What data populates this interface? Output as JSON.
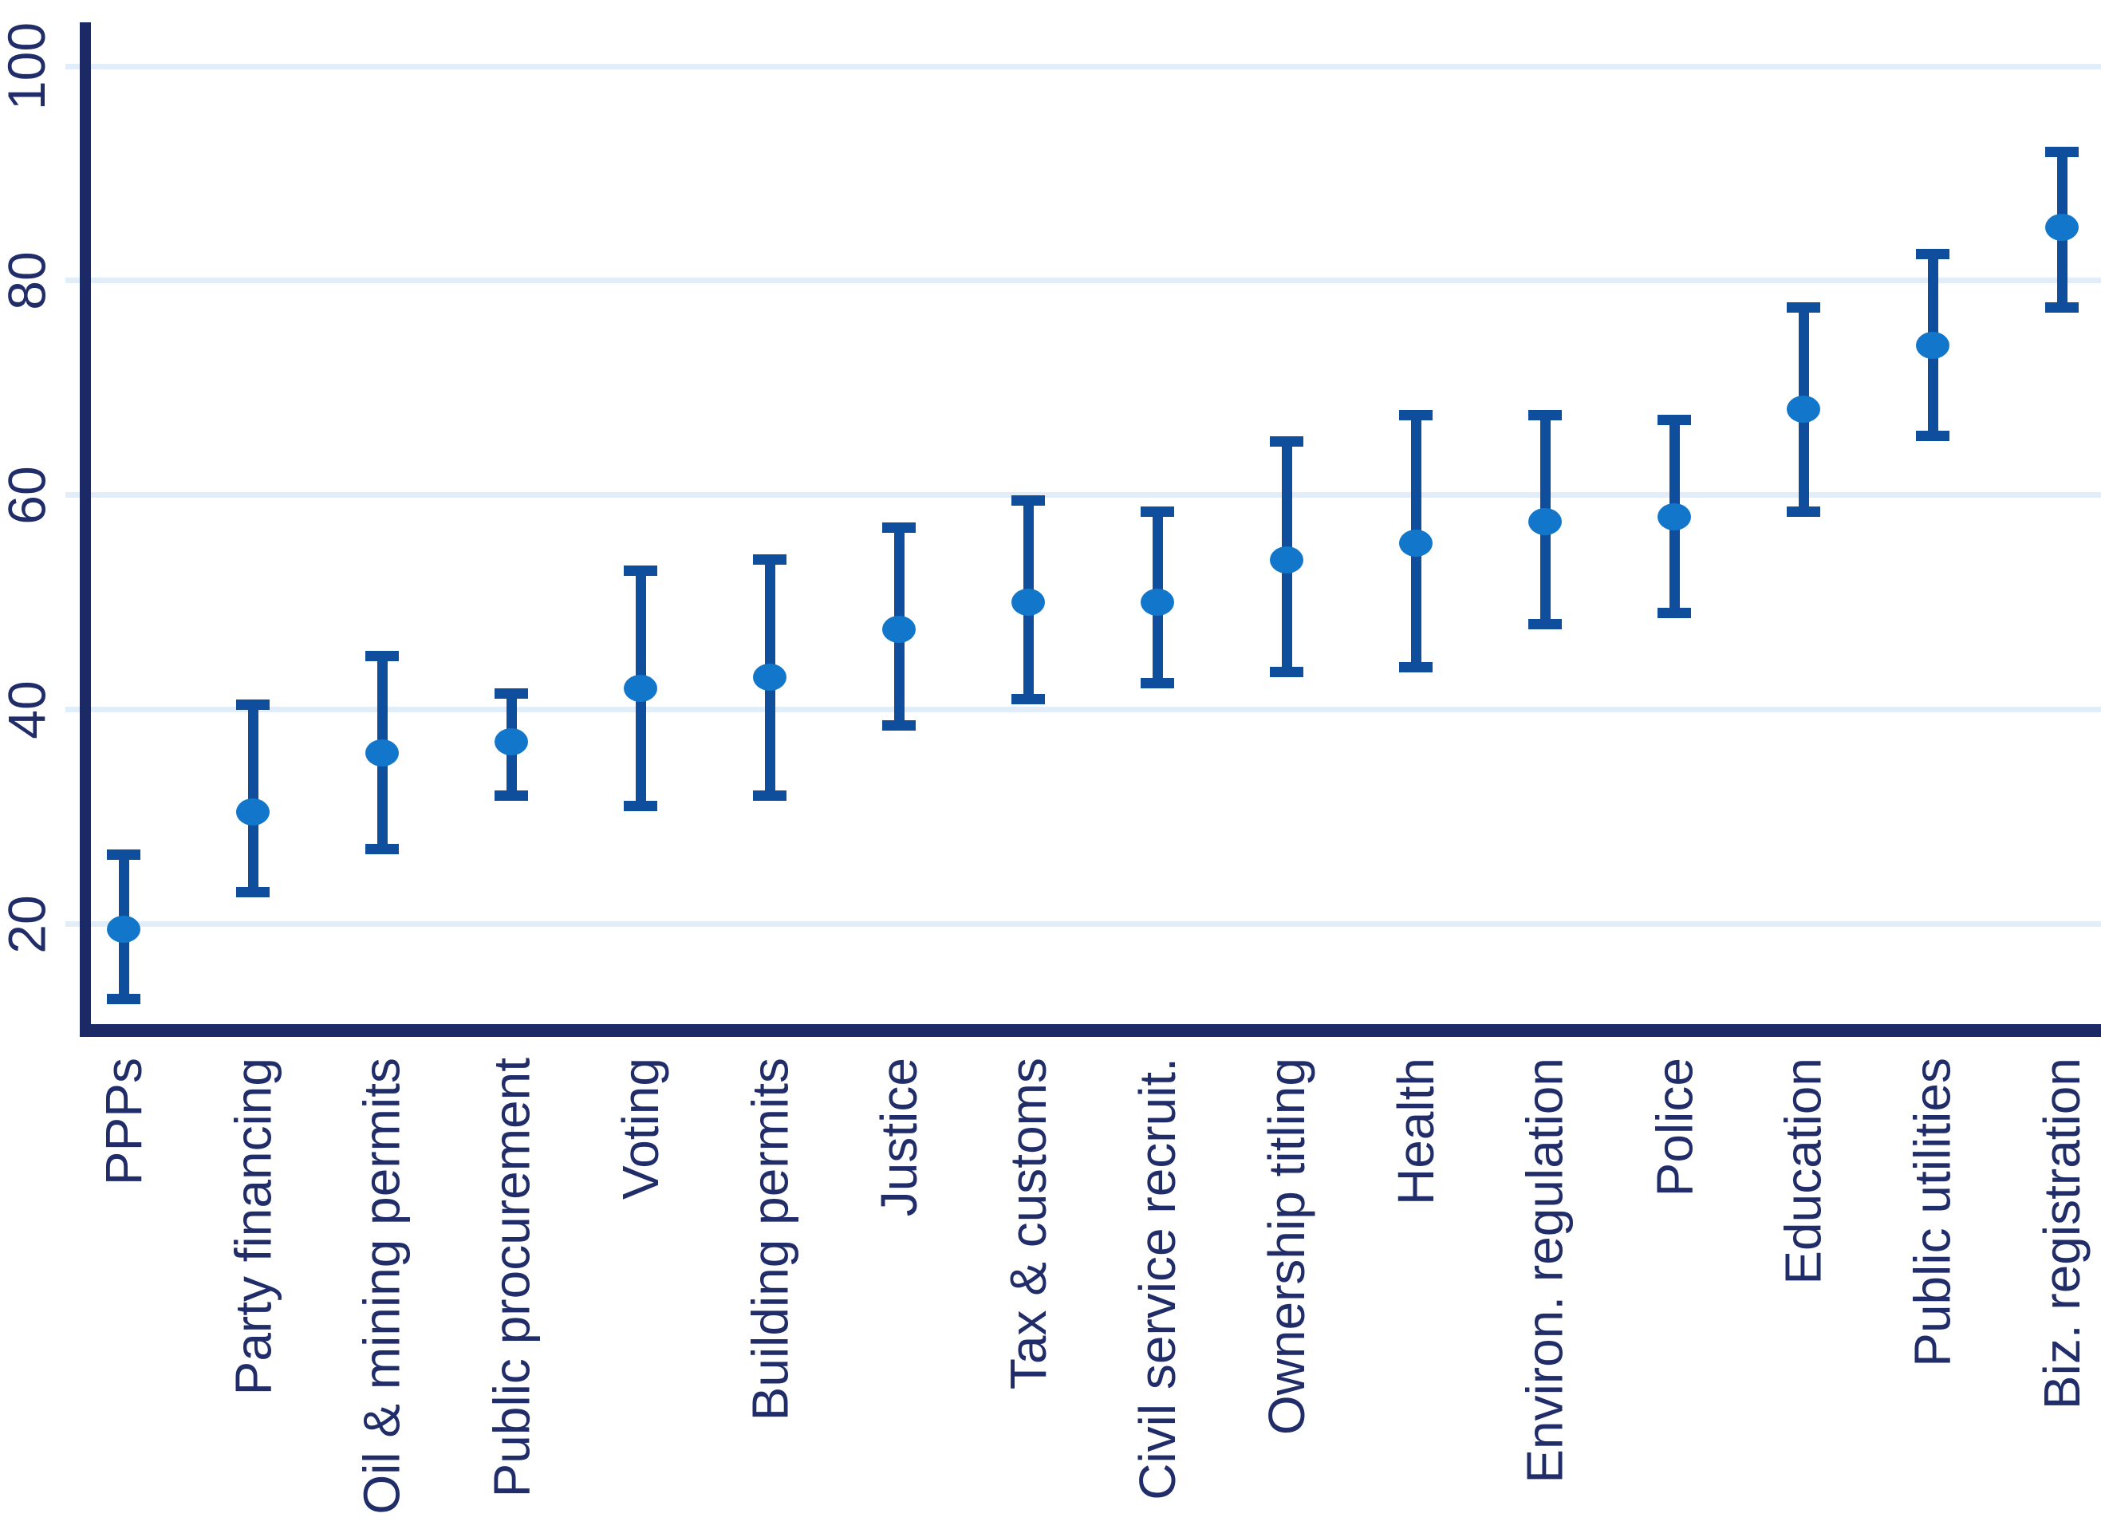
{
  "chart_data": {
    "type": "scatter",
    "subtype": "point-estimates-with-error-bars",
    "title": "",
    "xlabel": "",
    "ylabel": "",
    "grid": "horizontal",
    "legend": "none",
    "ylim": [
      10,
      104
    ],
    "y_ticks": [
      20,
      40,
      60,
      80,
      100
    ],
    "categories": [
      "PPPs",
      "Party financing",
      "Oil & mining permits",
      "Public procurement",
      "Voting",
      "Building permits",
      "Justice",
      "Tax & customs",
      "Civil service recruit.",
      "Ownership titling",
      "Health",
      "Environ. regulation",
      "Police",
      "Education",
      "Public utilities",
      "Biz. registration"
    ],
    "series": [
      {
        "name": "point estimate",
        "values": [
          19.5,
          30.5,
          36,
          37,
          42,
          43,
          47.5,
          50,
          50,
          54,
          55.5,
          57.5,
          58,
          68,
          74,
          85
        ]
      },
      {
        "name": "ci lower",
        "values": [
          13,
          23,
          27,
          32,
          31,
          32,
          38.5,
          41,
          42.5,
          43.5,
          44,
          48,
          49,
          58.5,
          65.5,
          77.5
        ]
      },
      {
        "name": "ci upper",
        "values": [
          26.5,
          40.5,
          45,
          41.5,
          53,
          54,
          57,
          59.5,
          58.5,
          65,
          67.5,
          67.5,
          67,
          77.5,
          82.5,
          92
        ]
      }
    ]
  },
  "colors": {
    "marker_fill": "#1277cb",
    "error_bar": "#0f4e9c",
    "axis": "#1b2a66",
    "tick_label_text": "#202d69",
    "gridline": "#e1edf8",
    "background": "#ffffff"
  }
}
